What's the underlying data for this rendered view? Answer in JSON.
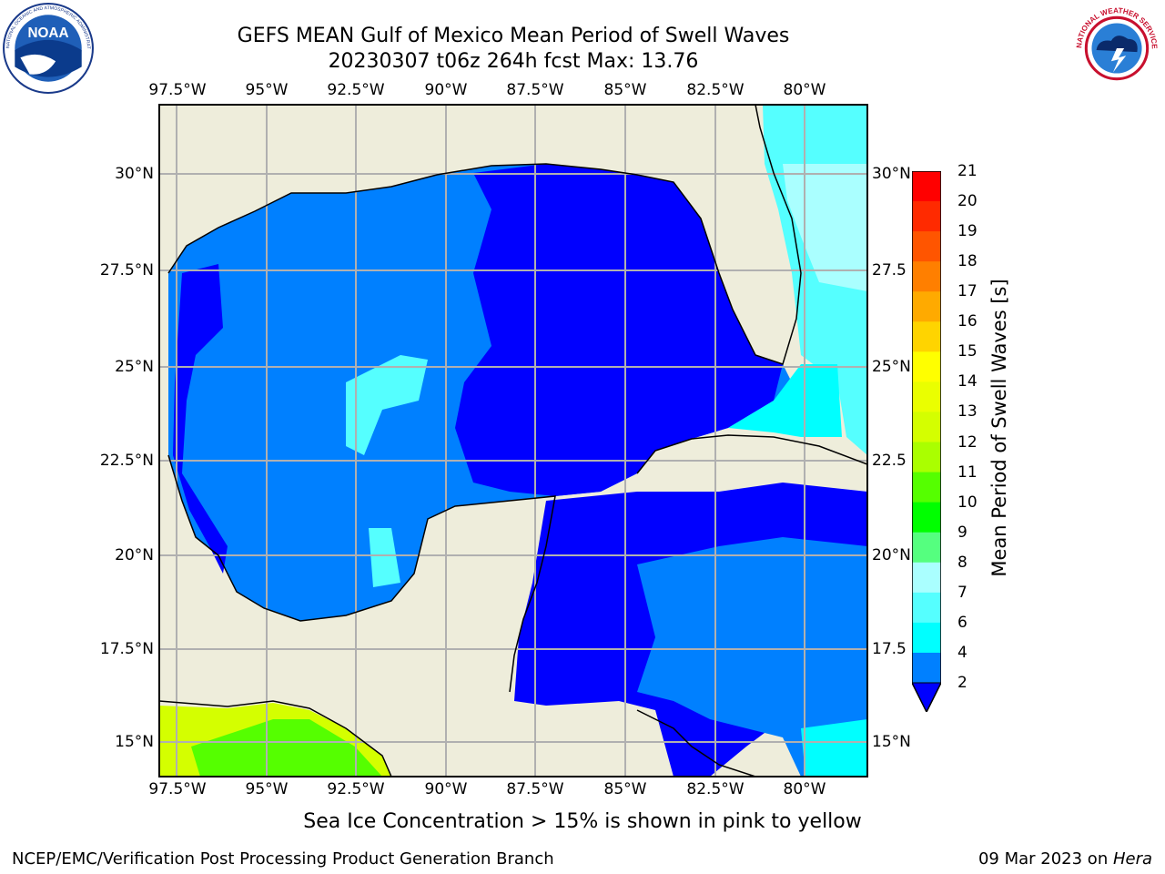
{
  "header": {
    "title": "GEFS MEAN Gulf of Mexico Mean Period of Swell Waves",
    "subtitle": "20230307 t06z 264h fcst   Max: 13.76"
  },
  "logos": {
    "left": "noaa-logo",
    "right": "nws-logo",
    "left_text": "NOAA",
    "left_ring_text": "NATIONAL OCEANIC AND ATMOSPHERIC ADMINISTRATION · U.S. DEPARTMENT OF COMMERCE",
    "right_ring_text": "NATIONAL WEATHER SERVICE"
  },
  "map": {
    "extent": {
      "lon": [
        -98.5,
        -78.7
      ],
      "lat": [
        14.0,
        31.8
      ]
    },
    "lon_ticks": [
      "97.5°W",
      "95°W",
      "92.5°W",
      "90°W",
      "87.5°W",
      "85°W",
      "82.5°W",
      "80°W"
    ],
    "lat_ticks_left": [
      "30°N",
      "27.5°N",
      "25°N",
      "22.5°N",
      "20°N",
      "17.5°N",
      "15°N"
    ],
    "lat_ticks_right": [
      "30°N",
      "27.5",
      "25°N",
      "22.5",
      "20°N",
      "17.5",
      "15°N"
    ],
    "land_color": "#eeeddb",
    "gridline_color": "#b0b0b0"
  },
  "colorbar": {
    "label": "Mean Period of Swell Waves [s]",
    "ticks": [
      "21",
      "20",
      "19",
      "18",
      "17",
      "16",
      "15",
      "14",
      "13",
      "12",
      "11",
      "10",
      "9",
      "8",
      "7",
      "6",
      "4",
      "2"
    ],
    "colors": [
      "#ff0000",
      "#ff2a00",
      "#ff5500",
      "#ff7f00",
      "#ffaa00",
      "#ffd400",
      "#ffff00",
      "#eaff00",
      "#d4ff00",
      "#aaff00",
      "#55ff00",
      "#00ff00",
      "#55ff7f",
      "#aaffff",
      "#55ffff",
      "#00ffff",
      "#0080ff",
      "#0000ff"
    ]
  },
  "note": "Sea Ice Concentration > 15% is shown in pink to yellow",
  "footer": {
    "left": "NCEP/EMC/Verification Post Processing Product Generation Branch",
    "right_date": "09 Mar 2023 on ",
    "right_host": "Hera"
  }
}
